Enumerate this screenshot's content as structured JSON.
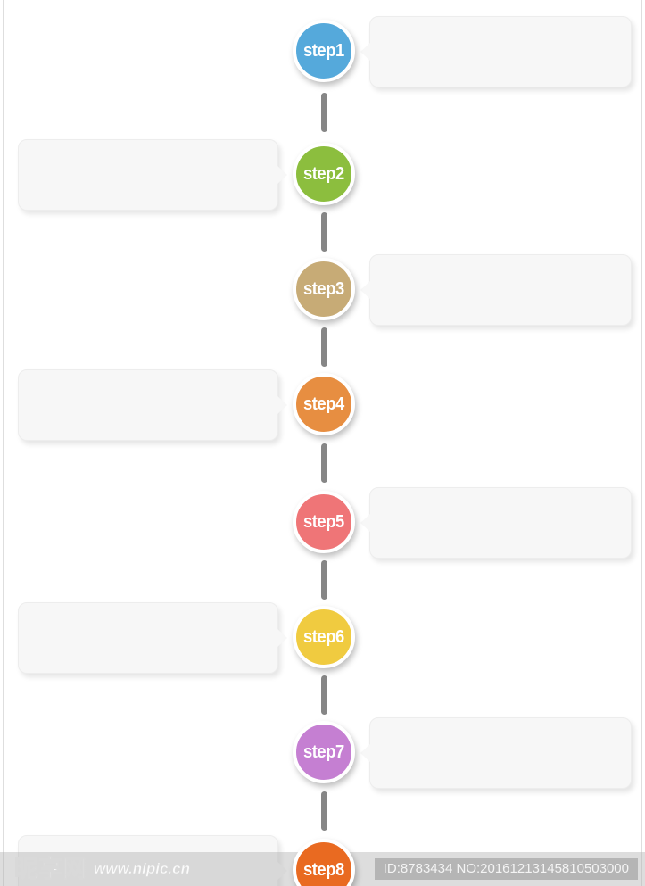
{
  "page": {
    "background": "#ffffff",
    "edge_line_color": "#dedede"
  },
  "timeline": {
    "connector_color": "#868686",
    "bubble_fill": "#f7f7f7",
    "steps": [
      {
        "label": "step1",
        "color": "#55A9DB",
        "side": "right"
      },
      {
        "label": "step2",
        "color": "#8CBE3E",
        "side": "left"
      },
      {
        "label": "step3",
        "color": "#C7AB76",
        "side": "right"
      },
      {
        "label": "step4",
        "color": "#E78E41",
        "side": "left"
      },
      {
        "label": "step5",
        "color": "#EF7577",
        "side": "right"
      },
      {
        "label": "step6",
        "color": "#F0CB40",
        "side": "left"
      },
      {
        "label": "step7",
        "color": "#C57FD2",
        "side": "right"
      },
      {
        "label": "step8",
        "color": "#E96A21",
        "side": "left"
      }
    ]
  },
  "watermark": {
    "logo_text": "昵享网",
    "logo_url": "www.nipic.cn",
    "id_text": "ID:8783434 NO:20161213145810503000"
  }
}
